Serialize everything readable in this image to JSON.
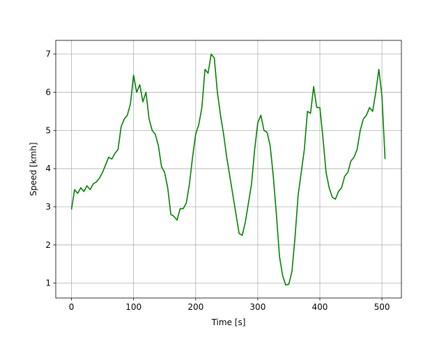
{
  "chart_data": {
    "type": "line",
    "xlabel": "Time [s]",
    "ylabel": "Speed [kmh]",
    "x": [
      0,
      5,
      10,
      15,
      20,
      25,
      30,
      35,
      40,
      45,
      50,
      55,
      60,
      65,
      70,
      75,
      80,
      85,
      90,
      95,
      100,
      105,
      110,
      115,
      120,
      125,
      130,
      135,
      140,
      145,
      150,
      155,
      160,
      165,
      170,
      175,
      180,
      185,
      190,
      195,
      200,
      205,
      210,
      215,
      220,
      225,
      230,
      235,
      240,
      245,
      250,
      255,
      260,
      265,
      270,
      275,
      280,
      285,
      290,
      295,
      300,
      305,
      310,
      315,
      320,
      325,
      330,
      335,
      340,
      345,
      350,
      355,
      360,
      365,
      370,
      375,
      380,
      385,
      390,
      395,
      400,
      405,
      410,
      415,
      420,
      425,
      430,
      435,
      440,
      445,
      450,
      455,
      460,
      465,
      470,
      475,
      480,
      485,
      490,
      495,
      500,
      505
    ],
    "series": [
      {
        "name": "Speed",
        "color": "#008000",
        "values": [
          2.93,
          3.45,
          3.35,
          3.5,
          3.4,
          3.55,
          3.45,
          3.6,
          3.65,
          3.75,
          3.9,
          4.1,
          4.3,
          4.25,
          4.4,
          4.5,
          5.1,
          5.3,
          5.4,
          5.7,
          6.45,
          6.0,
          6.2,
          5.75,
          6.0,
          5.3,
          5.0,
          4.9,
          4.6,
          4.05,
          3.9,
          3.5,
          2.8,
          2.75,
          2.65,
          2.95,
          2.95,
          3.1,
          3.6,
          4.3,
          4.9,
          5.15,
          5.6,
          6.6,
          6.5,
          7.0,
          6.9,
          6.0,
          5.4,
          4.9,
          4.3,
          3.8,
          3.3,
          2.8,
          2.3,
          2.25,
          2.6,
          3.1,
          3.6,
          4.5,
          5.2,
          5.4,
          5.0,
          4.95,
          4.6,
          3.8,
          2.8,
          1.7,
          1.2,
          0.95,
          0.97,
          1.3,
          2.2,
          3.3,
          3.9,
          4.5,
          5.5,
          5.45,
          6.15,
          5.6,
          5.6,
          4.8,
          3.9,
          3.5,
          3.25,
          3.2,
          3.4,
          3.5,
          3.8,
          3.9,
          4.2,
          4.3,
          4.5,
          5.0,
          5.3,
          5.4,
          5.6,
          5.5,
          6.0,
          6.6,
          5.9,
          4.25
        ]
      }
    ],
    "xlim": [
      -25.3,
      531.3
    ],
    "ylim": [
      0.61,
      7.36
    ],
    "xticks": [
      0,
      100,
      200,
      300,
      400,
      500
    ],
    "yticks": [
      1,
      2,
      3,
      4,
      5,
      6,
      7
    ],
    "grid": true
  }
}
